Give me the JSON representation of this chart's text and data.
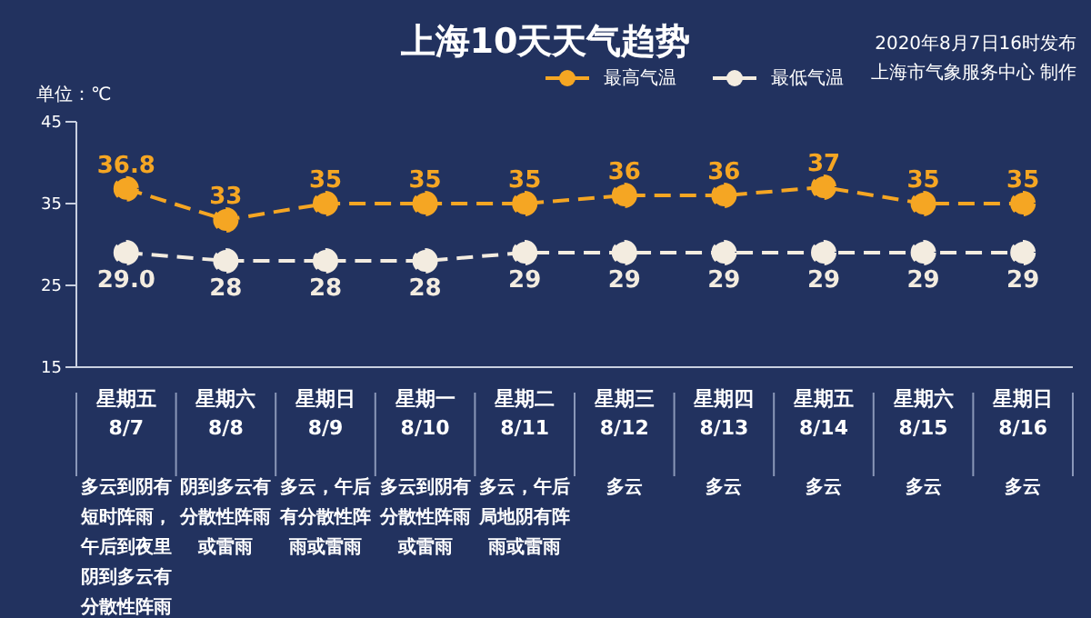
{
  "chart_data": {
    "type": "line",
    "title": "上海10天天气趋势",
    "ylabel": "单位：℃",
    "annotations": [
      "2020年8月7日16时发布",
      "上海市气象服务中心 制作"
    ],
    "categories": [
      "星期五\n8/7\n多云到阴有短时阵雨，午后到夜里阴到多云有分散性阵雨",
      "星期六\n8/8\n阴到多云有分散性阵雨或雷雨",
      "星期日\n8/9\n多云，午后有分散性阵雨或雷雨",
      "星期一\n8/10\n多云到阴有分散性阵雨或雷雨",
      "星期二\n8/11\n多云，午后局地阴有阵雨或雷雨",
      "星期三\n8/12\n多云",
      "星期四\n8/13\n多云",
      "星期五\n8/14\n多云",
      "星期六\n8/15\n多云",
      "星期日\n8/16\n多云"
    ],
    "series": [
      {
        "name": "最高气温",
        "color": "#f5a623",
        "values": [
          36.8,
          33,
          35,
          35,
          35,
          36,
          36,
          37,
          35,
          35
        ],
        "value_labels": [
          "36.8",
          "33",
          "35",
          "35",
          "35",
          "36",
          "36",
          "37",
          "35",
          "35"
        ]
      },
      {
        "name": "最低气温",
        "color": "#f3ece0",
        "values": [
          29.0,
          28,
          28,
          28,
          29,
          29,
          29,
          29,
          29,
          29
        ],
        "value_labels": [
          "29.0",
          "28",
          "28",
          "28",
          "29",
          "29",
          "29",
          "29",
          "29",
          "29"
        ]
      }
    ],
    "ylim": [
      15,
      45
    ],
    "yticks": [
      15,
      25,
      35,
      45
    ],
    "legend": "top right",
    "marker": "circle",
    "line_style": "dashed"
  }
}
